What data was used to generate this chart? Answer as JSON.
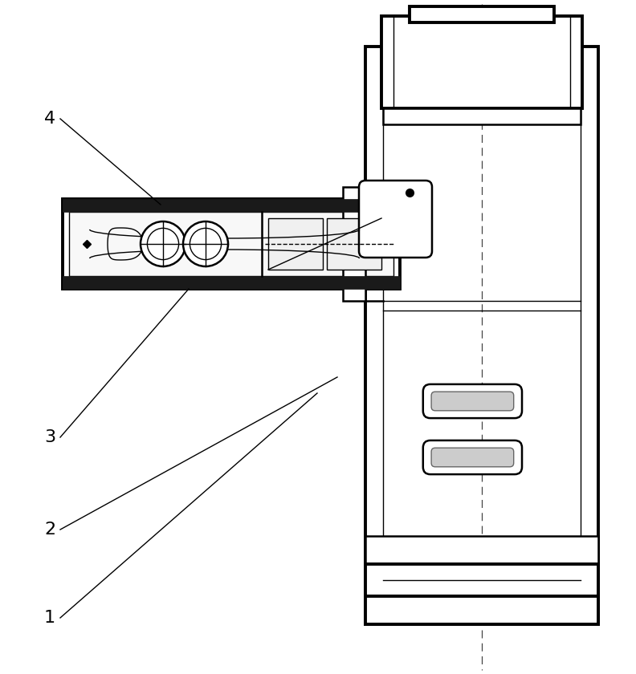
{
  "background_color": "#ffffff",
  "line_color": "#000000",
  "lw_thick": 2.8,
  "lw_med": 1.8,
  "lw_thin": 1.0,
  "figure_width": 7.92,
  "figure_height": 8.4,
  "dpi": 100
}
